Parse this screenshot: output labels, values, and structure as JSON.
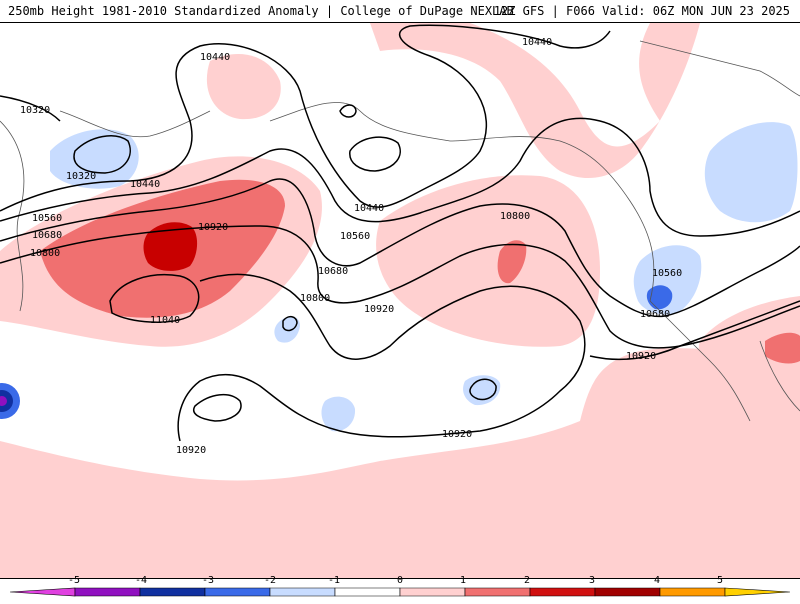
{
  "header": {
    "title": "250mb Height 1981-2010 Standardized Anomaly | College of DuPage NEXLAB",
    "run_info": "12Z GFS | F066 Valid: 06Z MON JUN 23 2025"
  },
  "contours": {
    "labels": [
      "10320",
      "10320",
      "10440",
      "10440",
      "10440",
      "10440",
      "10560",
      "10560",
      "10560",
      "10680",
      "10680",
      "10680",
      "10800",
      "10800",
      "10800",
      "10920",
      "10920",
      "10920",
      "10920",
      "10920",
      "11040"
    ]
  },
  "legend": {
    "ticks": [
      "-5",
      "-4",
      "-3",
      "-2",
      "-1",
      "0",
      "1",
      "2",
      "3",
      "4",
      "5"
    ],
    "colors": [
      "#e040e0",
      "#9010c0",
      "#1030a0",
      "#3a6ae8",
      "#c8dcff",
      "#ffffff",
      "#ffd0d0",
      "#f07070",
      "#d01010",
      "#a00000",
      "#ff9a00",
      "#ffd000"
    ]
  }
}
